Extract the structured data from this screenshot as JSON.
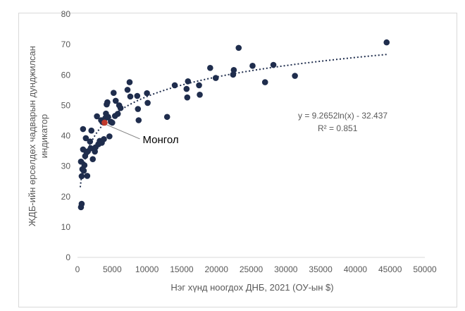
{
  "chart_data": {
    "type": "scatter",
    "title": "",
    "xlabel": "Нэг хүнд ноогдох ДНБ, 2021 (ОУ-ын $)",
    "ylabel_line1": "ЖДБ-ийн өрсөлдөх чадварын дунджилсан",
    "ylabel_line2": "индикатор",
    "xlim": [
      0,
      50000
    ],
    "ylim": [
      0,
      80
    ],
    "x_ticks": [
      "0",
      "5000",
      "10000",
      "15000",
      "20000",
      "25000",
      "30000",
      "35000",
      "40000",
      "45000",
      "50000"
    ],
    "y_ticks": [
      "0",
      "10",
      "20",
      "30",
      "40",
      "50",
      "60",
      "70",
      "80"
    ],
    "grid": false,
    "point_color": "#1f2d4d",
    "highlight_color": "#c0392b",
    "trend_color": "#1f2d4d",
    "trendline": {
      "type": "logarithmic",
      "a": 9.2652,
      "b": -32.437
    },
    "equation_line1": "y = 9.2652ln(x) - 32.437",
    "equation_line2": "R² = 0.851",
    "highlight": {
      "label": "Монгол",
      "x": 3900,
      "y": 44.3
    },
    "points": [
      [
        500,
        16.5
      ],
      [
        600,
        17.6
      ],
      [
        500,
        31.5
      ],
      [
        600,
        26.7
      ],
      [
        700,
        29.0
      ],
      [
        800,
        35.5
      ],
      [
        800,
        42.2
      ],
      [
        900,
        28.5
      ],
      [
        1000,
        30.3
      ],
      [
        1100,
        33.3
      ],
      [
        1200,
        39.2
      ],
      [
        1300,
        34.5
      ],
      [
        1400,
        26.8
      ],
      [
        1500,
        34.9
      ],
      [
        1800,
        38.1
      ],
      [
        1900,
        35.9
      ],
      [
        2000,
        41.7
      ],
      [
        2200,
        32.3
      ],
      [
        2500,
        34.8
      ],
      [
        2600,
        36.2
      ],
      [
        2800,
        46.4
      ],
      [
        3000,
        37.2
      ],
      [
        3200,
        38.3
      ],
      [
        3400,
        45.1
      ],
      [
        3500,
        37.7
      ],
      [
        3600,
        44.5
      ],
      [
        3800,
        38.9
      ],
      [
        4000,
        45.8
      ],
      [
        4100,
        47.3
      ],
      [
        4200,
        50.3
      ],
      [
        4300,
        51.0
      ],
      [
        4400,
        46.2
      ],
      [
        4600,
        39.8
      ],
      [
        4800,
        44.6
      ],
      [
        5000,
        44.3
      ],
      [
        5200,
        54.1
      ],
      [
        5400,
        46.5
      ],
      [
        5500,
        51.5
      ],
      [
        5800,
        47.2
      ],
      [
        6000,
        50.0
      ],
      [
        6200,
        49.1
      ],
      [
        7200,
        55.1
      ],
      [
        7500,
        57.6
      ],
      [
        7600,
        52.9
      ],
      [
        8600,
        53.1
      ],
      [
        8700,
        48.8
      ],
      [
        8800,
        45.1
      ],
      [
        10000,
        54.0
      ],
      [
        10100,
        50.8
      ],
      [
        12900,
        46.2
      ],
      [
        14000,
        56.6
      ],
      [
        15700,
        55.4
      ],
      [
        15800,
        52.6
      ],
      [
        15900,
        57.9
      ],
      [
        17500,
        56.6
      ],
      [
        17600,
        53.5
      ],
      [
        19100,
        62.3
      ],
      [
        19900,
        59.0
      ],
      [
        22400,
        60.1
      ],
      [
        22500,
        61.6
      ],
      [
        23200,
        68.9
      ],
      [
        25200,
        63.0
      ],
      [
        27000,
        57.6
      ],
      [
        28200,
        63.3
      ],
      [
        31300,
        59.7
      ],
      [
        44500,
        70.7
      ]
    ]
  }
}
